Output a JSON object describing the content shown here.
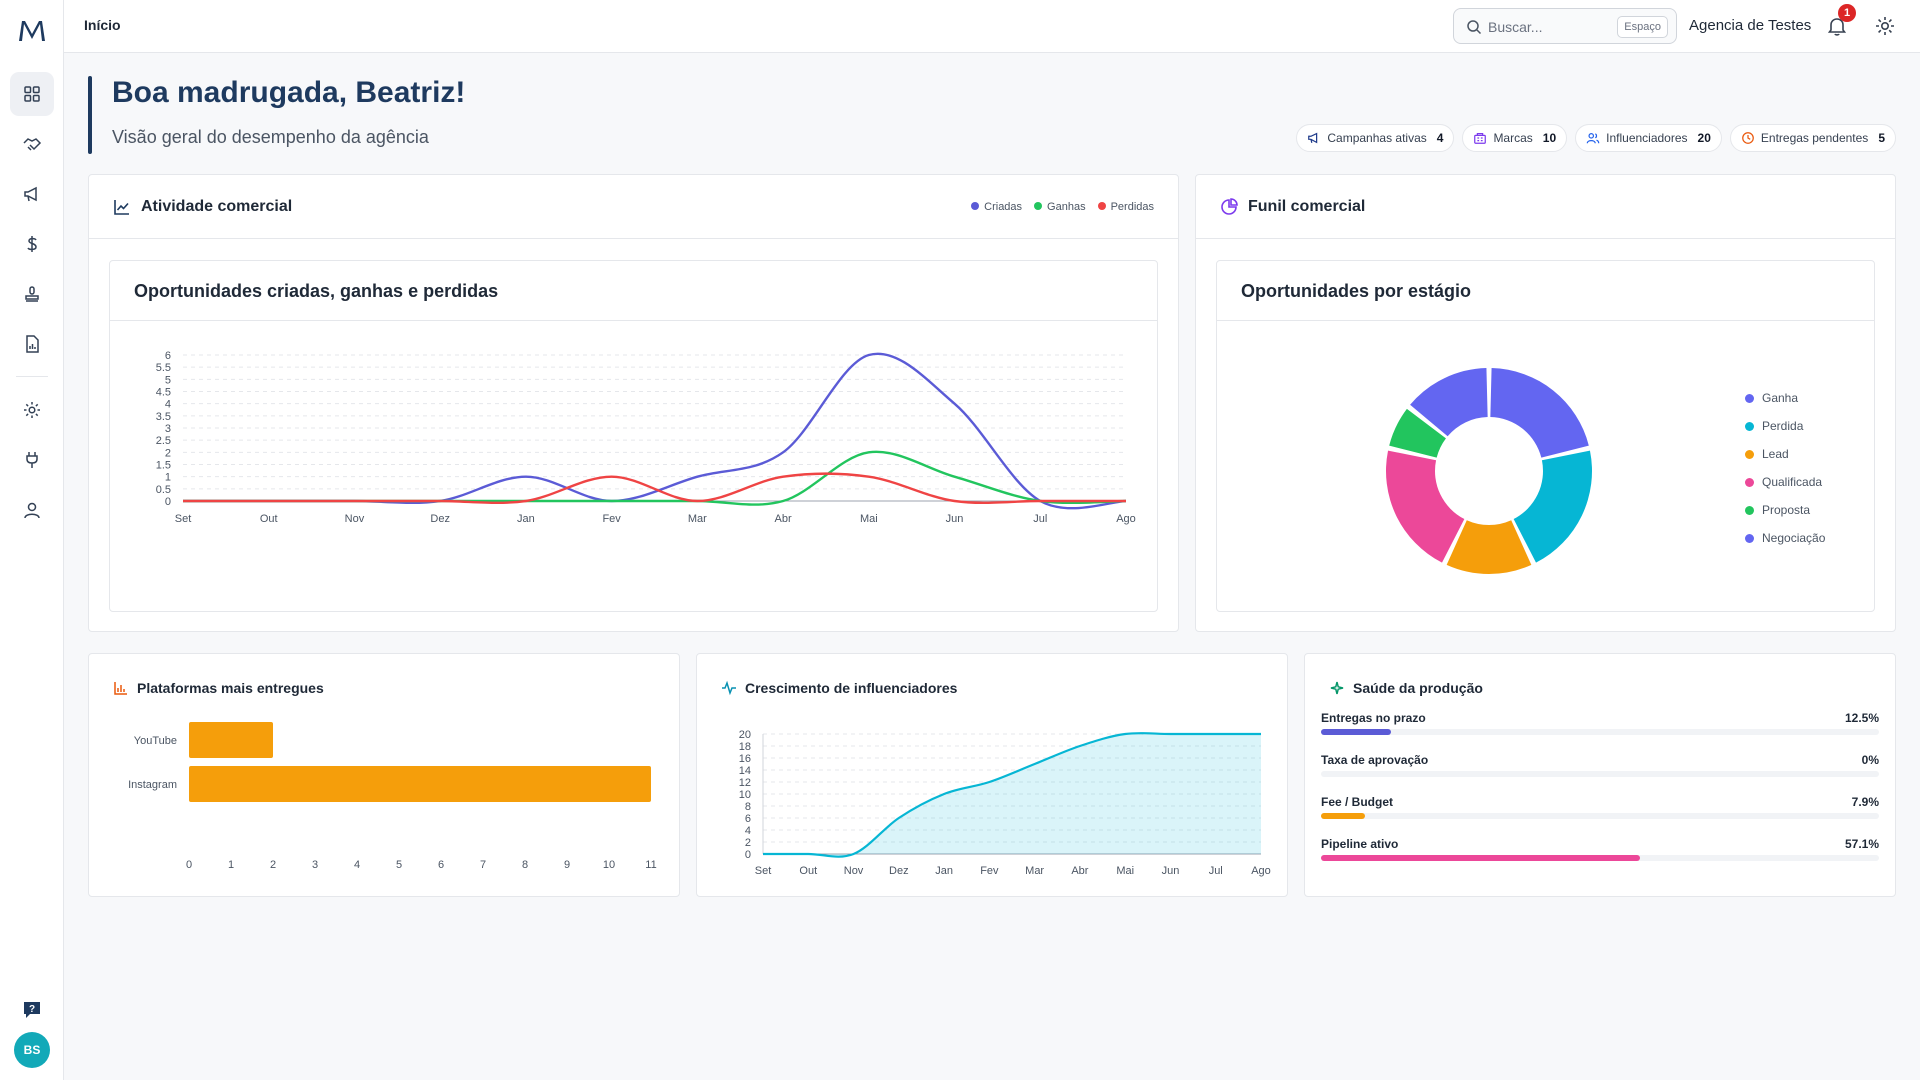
{
  "sidebar": {
    "logo": "M",
    "avatar_initials": "BS",
    "items": [
      {
        "name": "dashboard-icon",
        "active": true
      },
      {
        "name": "handshake-icon",
        "active": false
      },
      {
        "name": "megaphone-icon",
        "active": false
      },
      {
        "name": "dollar-icon",
        "active": false
      },
      {
        "name": "stamp-icon",
        "active": false
      },
      {
        "name": "report-icon",
        "active": false
      },
      {
        "name": "gear-icon",
        "active": false
      },
      {
        "name": "plug-icon",
        "active": false
      },
      {
        "name": "user-icon",
        "active": false
      }
    ]
  },
  "topbar": {
    "breadcrumb": "Início",
    "search_placeholder": "Buscar...",
    "search_shortcut": "Espaço",
    "workspace": "Agencia de Testes",
    "notification_count": "1"
  },
  "greeting": {
    "title": "Boa madrugada, Beatriz!",
    "subtitle": "Visão geral do desempenho da agência"
  },
  "chips": [
    {
      "label": "Campanhas ativas",
      "value": "4",
      "icon": "megaphone-icon",
      "color": "#1e3a8a"
    },
    {
      "label": "Marcas",
      "value": "10",
      "icon": "building-icon",
      "color": "#7c3aed"
    },
    {
      "label": "Influenciadores",
      "value": "20",
      "icon": "users-icon",
      "color": "#2563eb"
    },
    {
      "label": "Entregas pendentes",
      "value": "5",
      "icon": "clock-icon",
      "color": "#ea580c"
    }
  ],
  "activity": {
    "title": "Atividade comercial",
    "legend": [
      "Criadas",
      "Ganhas",
      "Perdidas"
    ],
    "inner_title": "Oportunidades criadas, ganhas e perdidas"
  },
  "funnel": {
    "title": "Funil comercial",
    "inner_title": "Oportunidades por estágio"
  },
  "platforms": {
    "title": "Plataformas mais entregues"
  },
  "growth": {
    "title": "Crescimento de influenciadores"
  },
  "health": {
    "title": "Saúde da produção",
    "rows": [
      {
        "label": "Entregas no prazo",
        "value": "12.5%",
        "fraction": 0.125,
        "color": "#5b5bd6"
      },
      {
        "label": "Taxa de aprovação",
        "value": "0%",
        "fraction": 0,
        "color": "#10b981"
      },
      {
        "label": "Fee / Budget",
        "value": "7.9%",
        "fraction": 0.079,
        "color": "#f59e0b"
      },
      {
        "label": "Pipeline ativo",
        "value": "57.1%",
        "fraction": 0.571,
        "color": "#ec4899"
      }
    ]
  },
  "chart_data": [
    {
      "type": "line",
      "title": "Oportunidades criadas, ganhas e perdidas",
      "x": [
        "Set",
        "Out",
        "Nov",
        "Dez",
        "Jan",
        "Fev",
        "Mar",
        "Abr",
        "Mai",
        "Jun",
        "Jul",
        "Ago"
      ],
      "yticks": [
        "0",
        "0.5",
        "1",
        "1.5",
        "2",
        "2.5",
        "3",
        "3.5",
        "4",
        "4.5",
        "5",
        "5.5",
        "6"
      ],
      "ylim": [
        0,
        6
      ],
      "grid": true,
      "legend": "top-right",
      "series": [
        {
          "name": "Criadas",
          "color": "#5b5bd6",
          "values": [
            0,
            0,
            0,
            0,
            1,
            0,
            1,
            2,
            6,
            4,
            0,
            0
          ]
        },
        {
          "name": "Ganhas",
          "color": "#22c55e",
          "values": [
            0,
            0,
            0,
            0,
            0,
            0,
            0,
            0,
            2,
            1,
            0,
            0
          ]
        },
        {
          "name": "Perdidas",
          "color": "#ef4444",
          "values": [
            0,
            0,
            0,
            0,
            0,
            1,
            0,
            1,
            1,
            0,
            0,
            0
          ]
        }
      ]
    },
    {
      "type": "pie",
      "title": "Oportunidades por estágio",
      "legend": "right",
      "categories": [
        "Ganha",
        "Perdida",
        "Lead",
        "Qualificada",
        "Proposta",
        "Negociação"
      ],
      "colors": [
        "#6366f1",
        "#06b6d4",
        "#f59e0b",
        "#ec4899",
        "#22c55e",
        "#6366f1"
      ],
      "values": [
        3,
        3,
        2,
        3,
        1,
        2
      ]
    },
    {
      "type": "bar",
      "orientation": "horizontal",
      "categories": [
        "YouTube",
        "Instagram"
      ],
      "values": [
        2,
        11
      ],
      "color": "#f59e0b",
      "xticks": [
        "0",
        "1",
        "2",
        "3",
        "4",
        "5",
        "6",
        "7",
        "8",
        "9",
        "10",
        "11"
      ],
      "xlim": [
        0,
        11
      ]
    },
    {
      "type": "area",
      "x": [
        "Set",
        "Out",
        "Nov",
        "Dez",
        "Jan",
        "Fev",
        "Mar",
        "Abr",
        "Mai",
        "Jun",
        "Jul",
        "Ago"
      ],
      "values": [
        0,
        0,
        0,
        6,
        10,
        12,
        15,
        18,
        20,
        20,
        20,
        20
      ],
      "yticks": [
        "0",
        "2",
        "4",
        "6",
        "8",
        "10",
        "12",
        "14",
        "16",
        "18",
        "20"
      ],
      "ylim": [
        0,
        20
      ],
      "color": "#06b6d4",
      "grid": true
    }
  ]
}
